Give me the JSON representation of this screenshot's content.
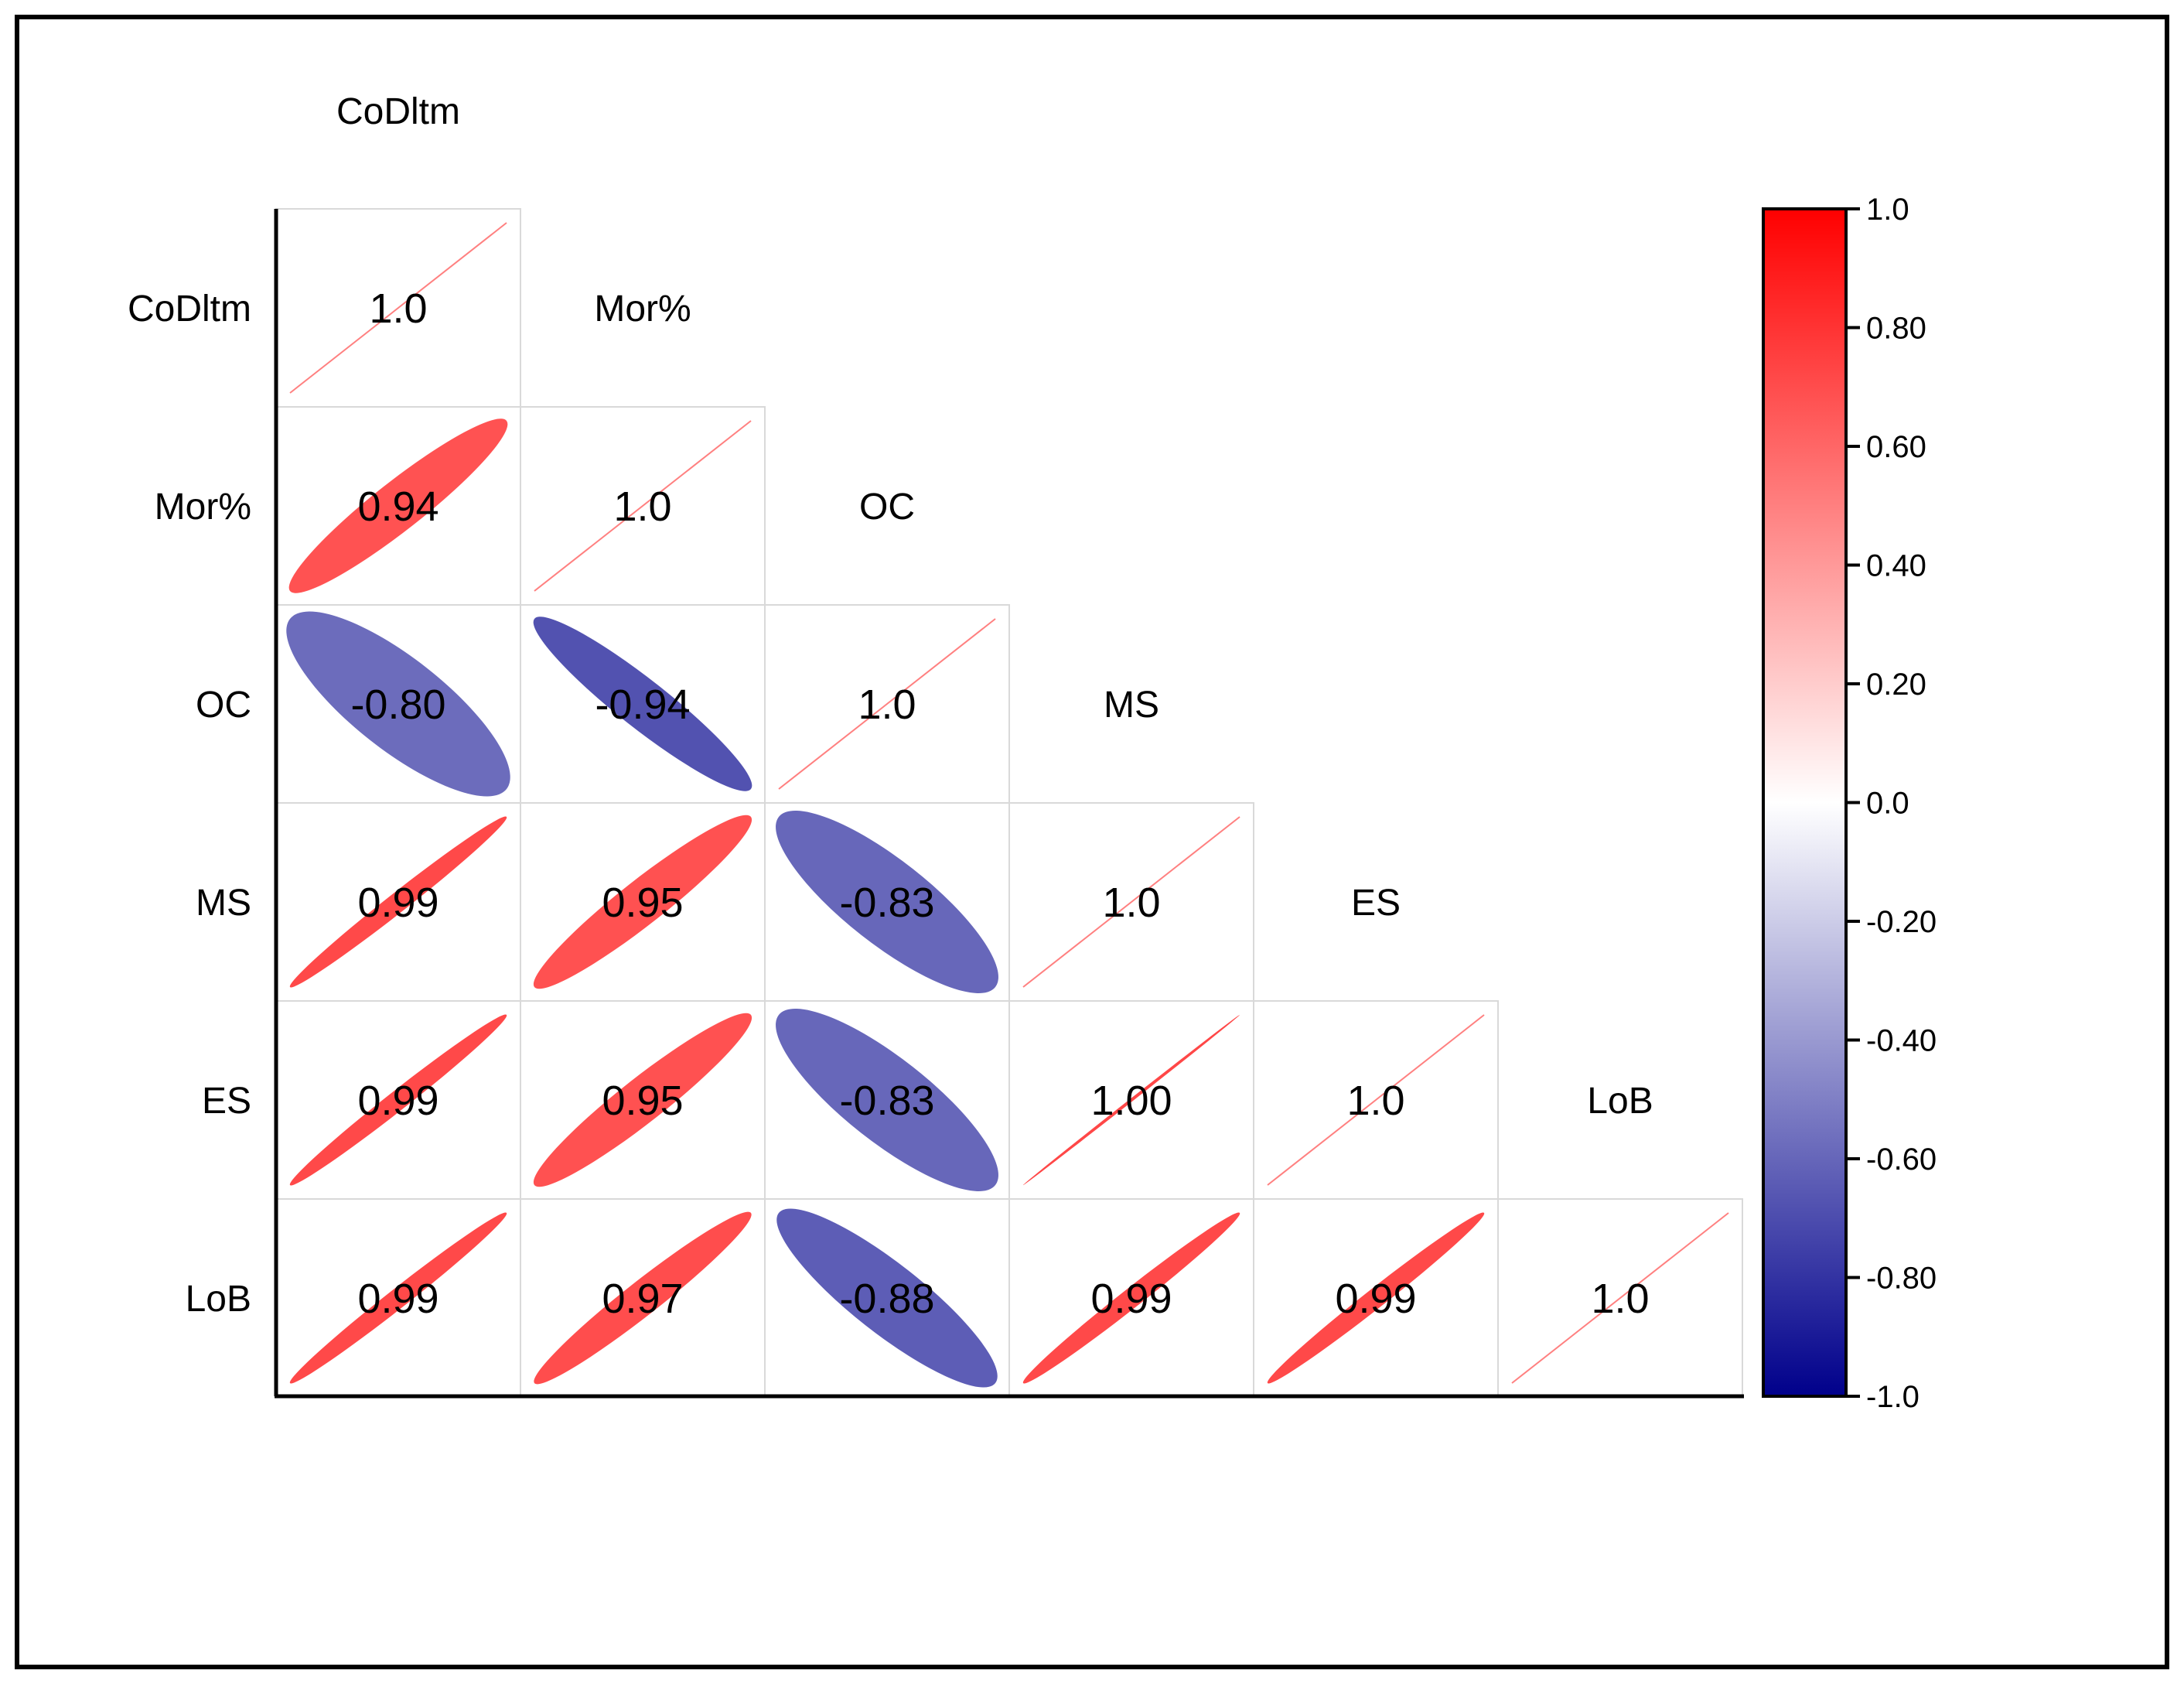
{
  "chart_data": {
    "type": "correlation-matrix-ellipse",
    "variables": [
      "CoDltm",
      "Mor%",
      "OC",
      "MS",
      "ES",
      "LoB"
    ],
    "matrix": [
      [
        1.0,
        null,
        null,
        null,
        null,
        null
      ],
      [
        0.94,
        1.0,
        null,
        null,
        null,
        null
      ],
      [
        -0.8,
        -0.94,
        1.0,
        null,
        null,
        null
      ],
      [
        0.99,
        0.95,
        -0.83,
        1.0,
        null,
        null
      ],
      [
        0.99,
        0.95,
        -0.83,
        1.0,
        1.0,
        null
      ],
      [
        0.99,
        0.97,
        -0.88,
        0.99,
        0.99,
        1.0
      ]
    ],
    "display_values": [
      [
        "1.0"
      ],
      [
        "0.94",
        "1.0"
      ],
      [
        "-0.80",
        "-0.94",
        "1.0"
      ],
      [
        "0.99",
        "0.95",
        "-0.83",
        "1.0"
      ],
      [
        "0.99",
        "0.95",
        "-0.83",
        "1.00",
        "1.0"
      ],
      [
        "0.99",
        "0.97",
        "-0.88",
        "0.99",
        "0.99",
        "1.0"
      ]
    ],
    "colorbar": {
      "range": [
        -1.0,
        1.0
      ],
      "ticks": [
        "1.0",
        "0.80",
        "0.60",
        "0.40",
        "0.20",
        "0.0",
        "-0.20",
        "-0.40",
        "-0.60",
        "-0.80",
        "-1.0"
      ],
      "colors": {
        "low": "#00008b",
        "mid": "#ffffff",
        "high": "#ff0000"
      }
    }
  }
}
